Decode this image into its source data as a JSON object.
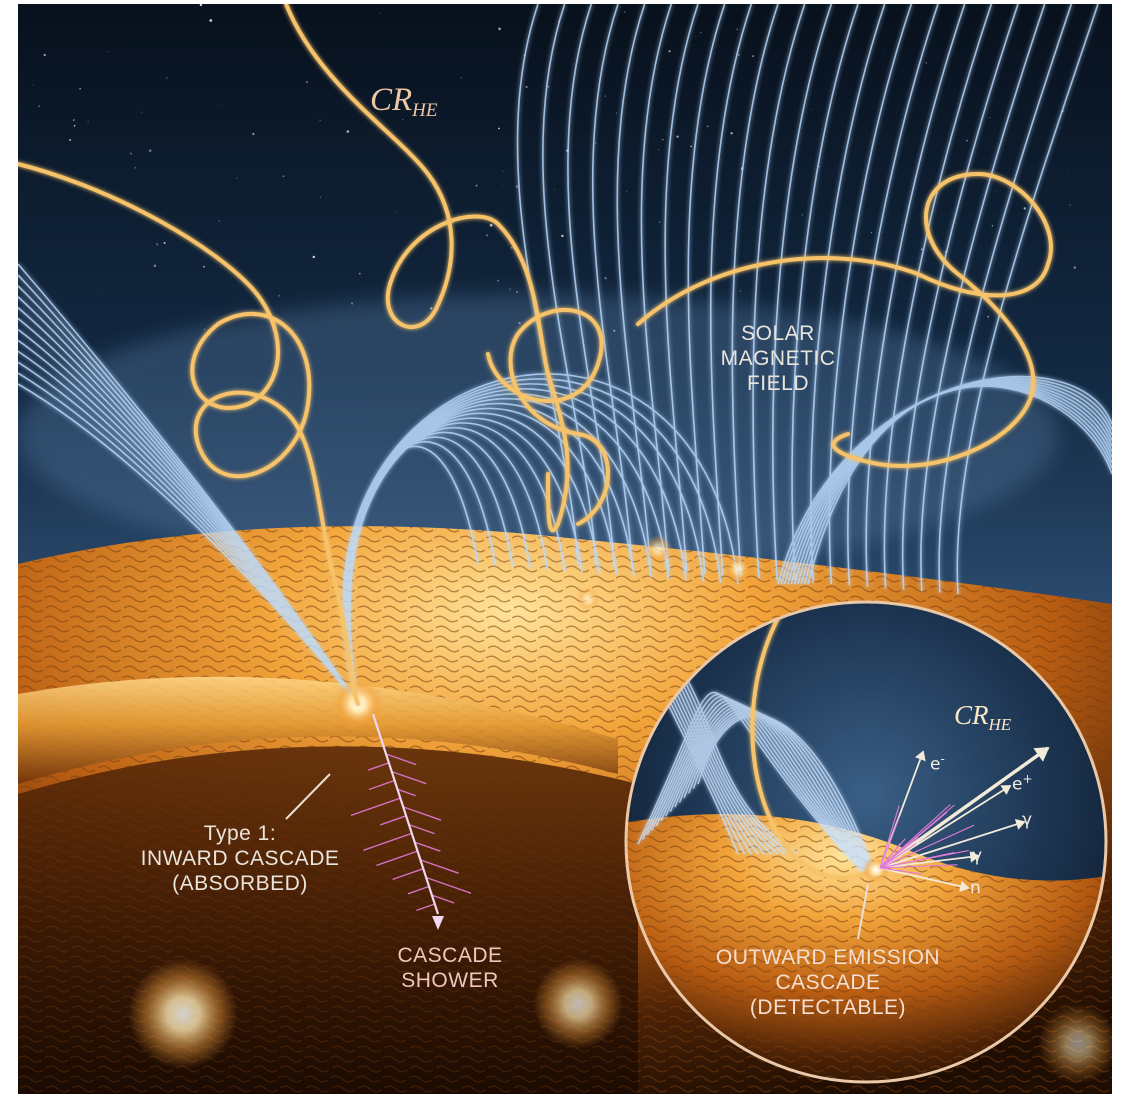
{
  "labels": {
    "cr_main": "CR",
    "cr_main_sub": "HE",
    "solar_field": [
      "SOLAR",
      "MAGNETIC",
      "FIELD"
    ],
    "type1": [
      "Type 1:",
      "INWARD CASCADE",
      "(ABSORBED)"
    ],
    "shower": [
      "CASCADE",
      "SHOWER"
    ],
    "inset_cr": "CR",
    "inset_cr_sub": "HE",
    "outward": [
      "OUTWARD EMISSION",
      "CASCADE",
      "(DETECTABLE)"
    ]
  },
  "particles": [
    {
      "base": "e",
      "sup": "-"
    },
    {
      "base": "e",
      "sup": "+"
    },
    {
      "base": "γ",
      "sup": ""
    },
    {
      "base": "γ",
      "sup": ""
    },
    {
      "base": "n",
      "sup": ""
    }
  ],
  "colors": {
    "space": "#0c1a2b",
    "field_line": "#bcdcff",
    "cosmic_ray": "#f6c36b",
    "sun_hot": "#ffd27a",
    "sun_dark": "#2a1404",
    "cascade_pink": "#e27bd7"
  }
}
